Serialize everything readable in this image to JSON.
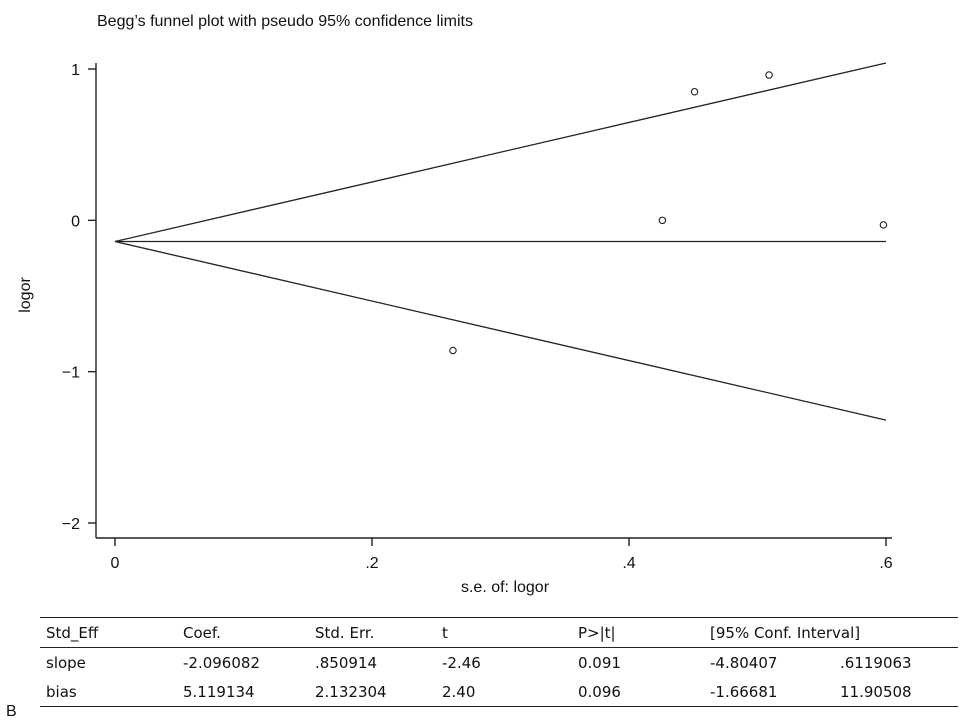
{
  "panel_label": "B",
  "chart_data": {
    "type": "scatter",
    "title": "Begg’s funnel plot with pseudo 95% confidence limits",
    "xlabel": "s.e. of: logor",
    "ylabel": "logor",
    "xlim": [
      0,
      0.6
    ],
    "ylim": [
      -2,
      1
    ],
    "x_ticks": [
      0,
      0.2,
      0.4,
      0.6
    ],
    "x_tick_labels": [
      "0",
      ".2",
      ".4",
      ".6"
    ],
    "y_ticks": [
      -2,
      -1,
      0,
      1
    ],
    "y_tick_labels": [
      "−2",
      "−1",
      "0",
      "1"
    ],
    "grid": false,
    "points": [
      {
        "x": 0.263,
        "y": -0.86
      },
      {
        "x": 0.426,
        "y": 0.0
      },
      {
        "x": 0.451,
        "y": 0.85
      },
      {
        "x": 0.509,
        "y": 0.96
      },
      {
        "x": 0.598,
        "y": -0.03
      }
    ],
    "pooled_estimate": -0.14,
    "funnel_lines": [
      {
        "from": [
          0,
          -0.14
        ],
        "to": [
          0.6,
          1.04
        ]
      },
      {
        "from": [
          0,
          -0.14
        ],
        "to": [
          0.6,
          -0.14
        ]
      },
      {
        "from": [
          0,
          -0.14
        ],
        "to": [
          0.6,
          -1.32
        ]
      }
    ]
  },
  "table": {
    "headers": [
      "Std_Eff",
      "Coef.",
      "Std. Err.",
      "t",
      "P>|t|",
      "[95% Conf. Interval]"
    ],
    "rows": [
      [
        "slope",
        "-2.096082",
        ".850914",
        "-2.46",
        "0.091",
        "-4.80407",
        ".6119063"
      ],
      [
        "bias",
        "5.119134",
        "2.132304",
        "2.40",
        "0.096",
        "-1.66681",
        "11.90508"
      ]
    ]
  }
}
